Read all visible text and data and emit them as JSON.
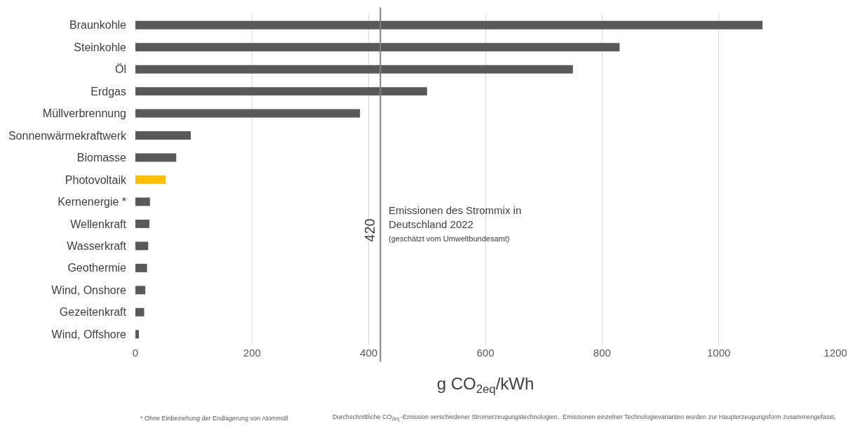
{
  "chart_data": {
    "type": "bar",
    "orientation": "horizontal",
    "categories": [
      "Braunkohle",
      "Steinkohle",
      "Öl",
      "Erdgas",
      "Müllverbrennung",
      "Sonnenwärmekraftwerk",
      "Biomasse",
      "Photovoltaik",
      "Kernenergie *",
      "Wellenkraft",
      "Wasserkraft",
      "Geothermie",
      "Wind, Onshore",
      "Gezeitenkraft",
      "Wind, Offshore"
    ],
    "values": [
      1075,
      830,
      750,
      500,
      385,
      95,
      70,
      52,
      25,
      24,
      22,
      20,
      17,
      15,
      6
    ],
    "colors": [
      "#595959",
      "#595959",
      "#595959",
      "#595959",
      "#595959",
      "#595959",
      "#595959",
      "#ffc000",
      "#595959",
      "#595959",
      "#595959",
      "#595959",
      "#595959",
      "#595959",
      "#595959"
    ],
    "xlim": [
      0,
      1200
    ],
    "xticks": [
      0,
      200,
      400,
      600,
      800,
      1000,
      1200
    ],
    "xlabel": "g CO$_{2eq}$/kWh",
    "grid": "x",
    "ref_lines": [
      {
        "axis": "x",
        "value": 420,
        "label": "420",
        "color": "#7f7f7f"
      }
    ],
    "annotations": [
      {
        "text": "Emissionen des Strommix in\nDeutschland 2022\n(geschätzt vom Umweltbundesamt)",
        "x": 420,
        "y": "Wellenkraft"
      },
      "* Ohne Einbeziehung der Endlagerung von Atommüll",
      "Durchschnittliche CO$_{2eq}$ -Emission verschiedener Stromerzeugungstechnologien.  Emissionen einzelner Technologievarianten wurden zur Haupterzeugungsform zusammengefasst."
    ]
  }
}
